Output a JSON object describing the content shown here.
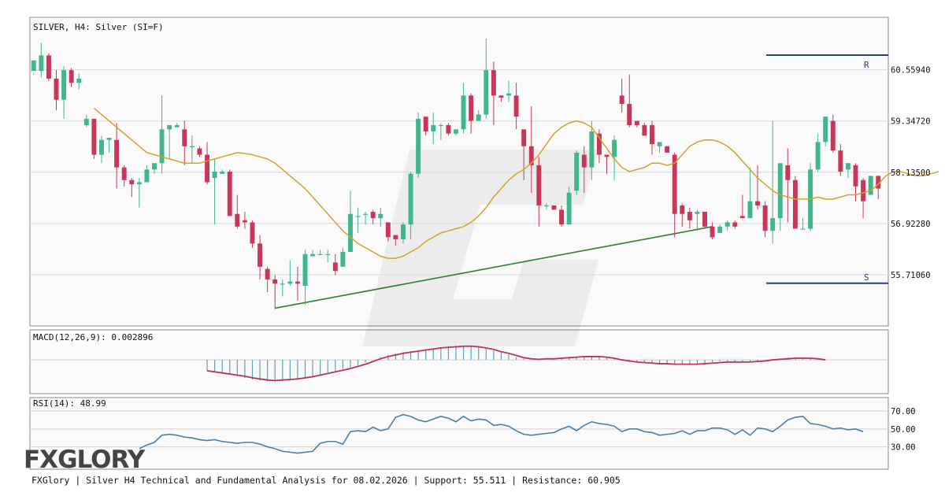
{
  "main_panel": {
    "header": "SILVER, H4: Silver (SI=F)",
    "price_labels": [
      "60.55940",
      "59.34720",
      "58.13500",
      "56.92280",
      "55.71060"
    ],
    "resistance_marker": "R",
    "support_marker": "S"
  },
  "macd_panel": {
    "header": "MACD(12,26,9): 0.002896"
  },
  "rsi_panel": {
    "header": "RSI(14): 48.99",
    "levels": [
      "70.00",
      "50.00",
      "30.00"
    ]
  },
  "footer": {
    "logo": "FXGLORY",
    "caption": "FXGlory | Silver H4 Technical and Fundamental Analysis for 08.02.2026 | Support: 55.511 | Resistance: 60.905"
  },
  "colors": {
    "bull": "#3fb68b",
    "bear": "#c8375a",
    "ma": "#d4a22a",
    "trendline": "#2e7d32",
    "sr_lines": "#2a3f7a",
    "macd_hist": "#5ba0c0",
    "macd_signal": "#c0305a",
    "rsi_line": "#4a7ea8"
  },
  "chart_data": [
    {
      "type": "candlestick",
      "title": "SILVER, H4: Silver (SI=F)",
      "ylim": [
        54.5,
        61.8
      ],
      "y_ticks": [
        60.5594,
        59.3472,
        58.135,
        56.9228,
        55.7106
      ],
      "resistance": 60.905,
      "support": 55.511,
      "candles": [
        [
          60.53,
          60.78,
          60.48,
          60.44
        ],
        [
          60.53,
          60.9,
          61.2,
          60.38
        ],
        [
          60.9,
          60.35,
          60.95,
          60.3
        ],
        [
          60.35,
          59.85,
          60.55,
          59.6
        ],
        [
          59.85,
          60.55,
          60.65,
          59.4
        ],
        [
          60.55,
          60.25,
          60.6,
          60.15
        ],
        [
          60.25,
          60.35,
          60.48,
          60.1
        ],
        [
          59.25,
          59.4,
          59.5,
          59.2
        ],
        [
          59.4,
          58.55,
          59.4,
          58.45
        ],
        [
          58.55,
          58.9,
          59.0,
          58.35
        ],
        [
          58.9,
          58.95,
          58.95,
          58.6
        ],
        [
          58.9,
          58.25,
          59.3,
          57.75
        ],
        [
          58.25,
          57.95,
          58.3,
          57.8
        ],
        [
          57.95,
          57.85,
          58.0,
          57.55
        ],
        [
          57.85,
          57.9,
          58.0,
          57.3
        ],
        [
          57.9,
          58.2,
          58.3,
          57.9
        ],
        [
          58.2,
          58.35,
          58.3,
          58.1
        ],
        [
          58.35,
          59.15,
          59.95,
          58.1
        ],
        [
          59.15,
          59.25,
          59.2,
          58.45
        ],
        [
          59.2,
          59.25,
          59.3,
          59.2
        ],
        [
          59.15,
          58.75,
          59.35,
          58.3
        ],
        [
          58.75,
          58.75,
          59.0,
          58.35
        ],
        [
          58.7,
          58.55,
          58.75,
          58.5
        ],
        [
          58.55,
          57.9,
          58.85,
          57.85
        ],
        [
          58.0,
          58.15,
          58.45,
          56.9
        ],
        [
          58.1,
          58.15,
          58.2,
          58.1
        ],
        [
          58.15,
          57.1,
          58.2,
          57.1
        ],
        [
          57.15,
          56.85,
          57.6,
          56.8
        ],
        [
          57.0,
          56.95,
          57.2,
          56.8
        ],
        [
          56.95,
          56.45,
          57.0,
          56.35
        ],
        [
          56.45,
          55.9,
          56.65,
          55.6
        ],
        [
          55.85,
          55.6,
          55.9,
          55.3
        ],
        [
          55.6,
          55.5,
          55.7,
          54.9
        ],
        [
          55.5,
          55.5,
          55.6,
          55.2
        ],
        [
          55.5,
          55.55,
          56.05,
          55.45
        ],
        [
          55.55,
          55.5,
          55.9,
          55.1
        ],
        [
          55.45,
          56.2,
          56.3,
          55.0
        ],
        [
          56.15,
          56.2,
          56.3,
          56.15
        ],
        [
          56.2,
          56.2,
          56.3,
          56.2
        ],
        [
          56.2,
          56.2,
          56.3,
          56.0
        ],
        [
          56.0,
          55.8,
          56.2,
          55.7
        ],
        [
          55.9,
          56.25,
          56.35,
          56.1
        ],
        [
          56.25,
          57.15,
          57.7,
          56.3
        ],
        [
          57.1,
          57.1,
          57.3,
          56.7
        ],
        [
          57.15,
          57.15,
          57.2,
          56.9
        ],
        [
          57.2,
          57.05,
          57.25,
          56.9
        ],
        [
          57.05,
          57.15,
          57.3,
          56.85
        ],
        [
          56.95,
          56.6,
          56.95,
          56.5
        ],
        [
          56.65,
          56.55,
          56.65,
          56.4
        ],
        [
          56.55,
          56.9,
          56.95,
          56.45
        ],
        [
          56.9,
          58.1,
          58.15,
          56.55
        ],
        [
          58.1,
          59.4,
          59.55,
          58.0
        ],
        [
          59.45,
          59.1,
          59.4,
          59.0
        ],
        [
          59.1,
          59.25,
          59.55,
          58.8
        ],
        [
          59.25,
          59.25,
          59.3,
          58.9
        ],
        [
          59.25,
          59.05,
          59.3,
          59.0
        ],
        [
          59.05,
          59.15,
          59.15,
          59.0
        ],
        [
          59.15,
          59.95,
          60.25,
          59.05
        ],
        [
          59.95,
          59.35,
          60.0,
          59.05
        ],
        [
          59.35,
          59.5,
          59.6,
          59.35
        ],
        [
          59.5,
          60.55,
          61.3,
          59.4
        ],
        [
          60.55,
          59.95,
          60.75,
          59.25
        ],
        [
          59.95,
          59.9,
          59.95,
          59.8
        ],
        [
          59.95,
          60.0,
          60.3,
          59.8
        ],
        [
          59.95,
          59.45,
          60.25,
          59.15
        ],
        [
          59.15,
          58.75,
          59.1,
          57.95
        ],
        [
          58.75,
          58.3,
          59.7,
          57.65
        ],
        [
          58.3,
          57.35,
          58.5,
          56.85
        ],
        [
          57.35,
          57.35,
          57.4,
          57.25
        ],
        [
          57.35,
          57.25,
          57.35,
          57.25
        ],
        [
          57.25,
          56.9,
          57.35,
          56.85
        ],
        [
          56.9,
          57.65,
          57.8,
          57.0
        ],
        [
          57.7,
          58.6,
          58.65,
          57.6
        ],
        [
          58.55,
          58.25,
          58.75,
          57.65
        ],
        [
          58.25,
          59.1,
          59.35,
          57.95
        ],
        [
          59.05,
          58.55,
          59.15,
          58.35
        ],
        [
          58.55,
          58.5,
          58.55,
          58.1
        ],
        [
          58.5,
          58.9,
          59.0,
          57.95
        ],
        [
          59.95,
          59.75,
          60.35,
          59.55
        ],
        [
          59.75,
          59.25,
          60.45,
          59.2
        ],
        [
          59.35,
          59.25,
          59.35,
          59.2
        ],
        [
          59.25,
          59.0,
          59.3,
          59.05
        ],
        [
          59.25,
          58.8,
          59.35,
          58.55
        ],
        [
          58.75,
          58.85,
          58.8,
          58.6
        ],
        [
          58.75,
          58.6,
          58.75,
          58.6
        ],
        [
          58.55,
          57.15,
          58.6,
          56.6
        ],
        [
          57.35,
          57.15,
          57.4,
          56.85
        ],
        [
          57.2,
          57.0,
          57.3,
          56.8
        ],
        [
          57.15,
          57.2,
          57.25,
          56.75
        ],
        [
          57.2,
          56.85,
          57.2,
          56.8
        ],
        [
          56.85,
          56.6,
          56.95,
          56.55
        ],
        [
          56.7,
          56.85,
          56.9,
          56.7
        ],
        [
          56.85,
          56.95,
          57.0,
          56.75
        ],
        [
          56.95,
          56.85,
          57.0,
          56.8
        ],
        [
          57.1,
          57.05,
          57.6,
          57.05
        ],
        [
          57.05,
          57.45,
          58.25,
          57.05
        ],
        [
          57.45,
          57.35,
          58.3,
          57.25
        ],
        [
          57.35,
          56.75,
          57.45,
          56.6
        ],
        [
          56.75,
          57.05,
          59.35,
          56.45
        ],
        [
          57.05,
          58.35,
          58.25,
          56.75
        ],
        [
          58.3,
          57.95,
          58.7,
          56.95
        ],
        [
          57.95,
          56.8,
          58.05,
          56.8
        ],
        [
          56.8,
          56.8,
          57.05,
          56.8
        ],
        [
          56.8,
          58.2,
          58.35,
          56.75
        ],
        [
          58.2,
          58.85,
          59.05,
          58.15
        ],
        [
          58.85,
          59.45,
          59.45,
          58.75
        ],
        [
          59.35,
          58.65,
          59.5,
          58.6
        ],
        [
          58.65,
          58.15,
          58.8,
          58.05
        ],
        [
          58.2,
          58.35,
          58.35,
          58.0
        ],
        [
          58.3,
          57.8,
          58.35,
          57.45
        ],
        [
          57.95,
          57.45,
          58.0,
          57.05
        ],
        [
          57.6,
          58.05,
          58.05,
          57.6
        ],
        [
          58.05,
          57.75,
          58.05,
          57.5
        ]
      ],
      "moving_average": [
        59.65,
        59.5,
        59.35,
        59.2,
        59.05,
        58.9,
        58.75,
        58.6,
        58.55,
        58.5,
        58.45,
        58.4,
        58.35,
        58.35,
        58.35,
        58.4,
        58.45,
        58.5,
        58.55,
        58.6,
        58.58,
        58.55,
        58.5,
        58.45,
        58.35,
        58.2,
        58.05,
        57.9,
        57.75,
        57.55,
        57.35,
        57.15,
        56.95,
        56.75,
        56.6,
        56.45,
        56.35,
        56.25,
        56.15,
        56.1,
        56.1,
        56.15,
        56.25,
        56.35,
        56.5,
        56.6,
        56.7,
        56.75,
        56.8,
        56.85,
        56.95,
        57.1,
        57.3,
        57.55,
        57.75,
        57.95,
        58.1,
        58.2,
        58.35,
        58.55,
        58.8,
        59.05,
        59.2,
        59.3,
        59.35,
        59.3,
        59.2,
        58.95,
        58.7,
        58.45,
        58.25,
        58.15,
        58.2,
        58.25,
        58.35,
        58.35,
        58.3,
        58.35,
        58.55,
        58.75,
        58.85,
        58.9,
        58.9,
        58.85,
        58.75,
        58.6,
        58.4,
        58.2,
        58.0,
        57.85,
        57.7,
        57.6,
        57.55,
        57.5,
        57.5,
        57.5,
        57.55,
        57.5,
        57.5,
        57.55,
        57.6,
        57.6,
        57.65,
        57.7,
        57.85,
        58.05,
        58.15,
        58.15,
        58.1,
        58.05,
        58.05,
        58.1,
        58.15
      ],
      "trendline": [
        [
          32,
          54.92
        ],
        [
          90,
          56.85
        ]
      ],
      "resistance_marker": "R",
      "support_marker": "S"
    },
    {
      "type": "bar",
      "title": "MACD(12,26,9): 0.002896",
      "ylim": [
        -0.62,
        0.55
      ],
      "histogram_start_index": 23,
      "histogram": [
        -0.2,
        -0.23,
        -0.25,
        -0.27,
        -0.3,
        -0.33,
        -0.36,
        -0.38,
        -0.39,
        -0.4,
        -0.39,
        -0.38,
        -0.36,
        -0.33,
        -0.3,
        -0.27,
        -0.23,
        -0.2,
        -0.17,
        -0.14,
        -0.1,
        -0.05,
        0.0,
        0.05,
        0.09,
        0.12,
        0.14,
        0.16,
        0.18,
        0.2,
        0.21,
        0.23,
        0.25,
        0.26,
        0.26,
        0.27,
        0.25,
        0.22,
        0.18,
        0.14,
        0.1,
        0.05,
        0.02,
        0.0,
        0.0,
        0.02,
        0.03,
        0.04,
        0.05,
        0.06,
        0.07,
        0.07,
        0.06,
        0.05,
        0.02,
        -0.02,
        -0.04,
        -0.05,
        -0.06,
        -0.06,
        -0.07,
        -0.08,
        -0.08,
        -0.09,
        -0.09,
        -0.08,
        -0.06,
        -0.04,
        -0.03,
        -0.03,
        -0.04,
        -0.04,
        -0.03,
        -0.02,
        0.0,
        0.02,
        0.03,
        0.04,
        0.04,
        0.04,
        0.03,
        0.01,
        0.0
      ],
      "signal": [
        -0.2,
        -0.22,
        -0.24,
        -0.26,
        -0.28,
        -0.3,
        -0.33,
        -0.35,
        -0.37,
        -0.38,
        -0.37,
        -0.36,
        -0.35,
        -0.33,
        -0.31,
        -0.28,
        -0.25,
        -0.22,
        -0.19,
        -0.16,
        -0.12,
        -0.08,
        -0.03,
        0.02,
        0.06,
        0.09,
        0.12,
        0.14,
        0.16,
        0.18,
        0.2,
        0.22,
        0.23,
        0.24,
        0.25,
        0.25,
        0.24,
        0.22,
        0.19,
        0.15,
        0.12,
        0.08,
        0.04,
        0.02,
        0.01,
        0.02,
        0.02,
        0.03,
        0.04,
        0.05,
        0.06,
        0.06,
        0.06,
        0.05,
        0.03,
        0.0,
        -0.02,
        -0.04,
        -0.05,
        -0.06,
        -0.07,
        -0.07,
        -0.08,
        -0.08,
        -0.08,
        -0.08,
        -0.07,
        -0.06,
        -0.05,
        -0.04,
        -0.04,
        -0.04,
        -0.04,
        -0.03,
        -0.02,
        0.0,
        0.01,
        0.02,
        0.03,
        0.03,
        0.03,
        0.02,
        0.0
      ]
    },
    {
      "type": "line",
      "title": "RSI(14): 48.99",
      "ylim": [
        5,
        85
      ],
      "y_ticks": [
        70,
        50,
        30
      ],
      "start_index": 14,
      "values": [
        28,
        32,
        35,
        43,
        44,
        43,
        41,
        40,
        38,
        37,
        38,
        36,
        35,
        34,
        35,
        35,
        33,
        30,
        28,
        25,
        24,
        23,
        24,
        25,
        34,
        36,
        36,
        33,
        47,
        48,
        47,
        52,
        48,
        50,
        63,
        66,
        64,
        60,
        58,
        61,
        64,
        62,
        58,
        64,
        59,
        61,
        60,
        54,
        55,
        53,
        48,
        44,
        43,
        44,
        45,
        46,
        50,
        53,
        48,
        54,
        58,
        56,
        55,
        53,
        47,
        50,
        50,
        47,
        46,
        43,
        44,
        45,
        48,
        44,
        48,
        48,
        51,
        51,
        49,
        44,
        49,
        43,
        51,
        50,
        47,
        53,
        60,
        63,
        64,
        56,
        55,
        53,
        50,
        51,
        49,
        50,
        47
      ]
    }
  ]
}
